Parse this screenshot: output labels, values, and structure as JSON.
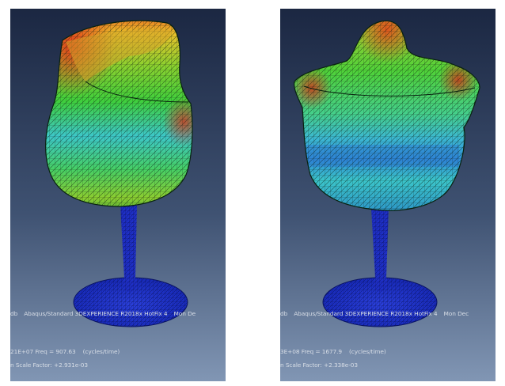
{
  "panels": [
    {
      "id": "mode-shape-1",
      "status_line_1": {
        "file": "db",
        "product": "Abaqus/Standard 3DEXPERIENCE R2018x HotFix 4",
        "date": "Mon De"
      },
      "status_line_2": {
        "eigen": "21E+07 Freq =",
        "freq_value": "907.63",
        "units": "(cycles/time)"
      },
      "status_line_3": "n Scale Factor: +2.931e-03"
    },
    {
      "id": "mode-shape-2",
      "status_line_1": {
        "file": "db",
        "product": "Abaqus/Standard 3DEXPERIENCE R2018x HotFix 4",
        "date": "Mon Dec"
      },
      "status_line_2": {
        "eigen": "3E+08 Freq =",
        "freq_value": "1677.9",
        "units": "(cycles/time)"
      },
      "status_line_3": "n Scale Factor: +2.338e-03"
    }
  ],
  "colors": {
    "viewport_top": "#1b2742",
    "viewport_bottom": "#7f95b4",
    "contour_red": "#e0331c",
    "contour_yellow": "#f2e02a",
    "contour_green": "#3fd23a",
    "contour_cyan": "#37c6d8",
    "contour_blue": "#2632c8",
    "mesh_lines": "#0a1a10"
  }
}
